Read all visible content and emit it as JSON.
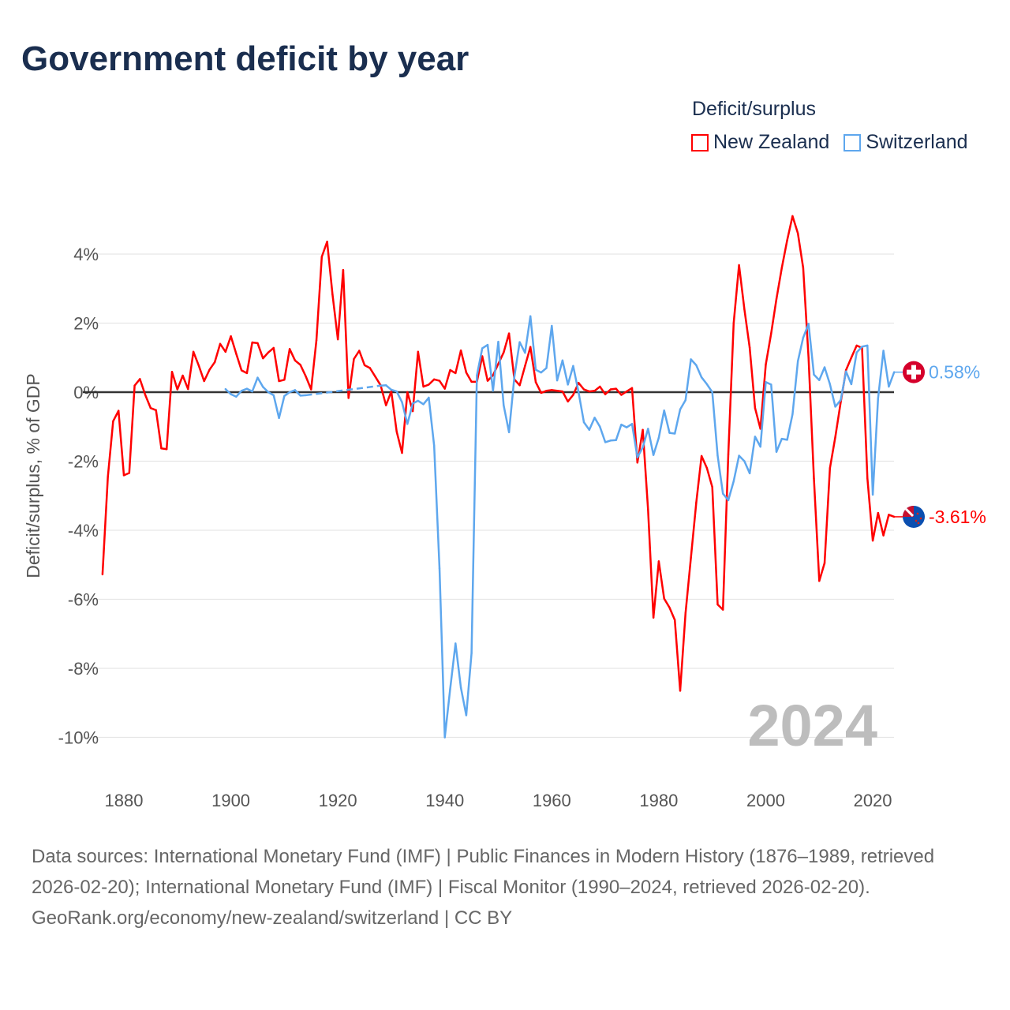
{
  "title": "Government deficit by year",
  "legend": {
    "title": "Deficit/surplus",
    "items": [
      {
        "label": "New Zealand",
        "color": "#ff0000"
      },
      {
        "label": "Switzerland",
        "color": "#5ea7ee"
      }
    ]
  },
  "chart_data": {
    "type": "line",
    "title": "Government deficit by year",
    "xlabel": "",
    "ylabel": "Deficit/surplus, % of GDP",
    "xlim": [
      1876,
      2024
    ],
    "ylim": [
      -11,
      5.2
    ],
    "x_ticks": [
      1880,
      1900,
      1920,
      1940,
      1960,
      1980,
      2000,
      2020
    ],
    "y_ticks": [
      -10,
      -8,
      -6,
      -4,
      -2,
      0,
      2,
      4
    ],
    "y_tick_labels": [
      "-10%",
      "-8%",
      "-6%",
      "-4%",
      "-2%",
      "0%",
      "2%",
      "4%"
    ],
    "grid": true,
    "legend_position": "top-right",
    "year_watermark": "2024",
    "series": [
      {
        "name": "New Zealand",
        "color": "#ff0000",
        "start_year": 1876,
        "end_label": "-3.61%",
        "flag": "new-zealand",
        "values": [
          -5.28,
          -2.45,
          -0.84,
          -0.54,
          -2.41,
          -2.34,
          0.19,
          0.38,
          -0.08,
          -0.46,
          -0.52,
          -1.63,
          -1.65,
          0.59,
          0.08,
          0.48,
          0.09,
          1.17,
          0.77,
          0.32,
          0.65,
          0.87,
          1.4,
          1.17,
          1.62,
          1.11,
          0.63,
          0.55,
          1.44,
          1.42,
          0.98,
          1.15,
          1.28,
          0.32,
          0.36,
          1.25,
          0.92,
          0.79,
          0.46,
          0.08,
          1.5,
          3.92,
          4.36,
          2.83,
          1.53,
          3.54,
          -0.17,
          0.96,
          1.2,
          0.78,
          0.7,
          0.45,
          0.2,
          -0.38,
          0.02,
          -1.14,
          -1.76,
          0.0,
          -0.55,
          1.17,
          0.16,
          0.22,
          0.37,
          0.33,
          0.1,
          0.64,
          0.55,
          1.21,
          0.57,
          0.3,
          0.3,
          1.04,
          0.33,
          0.49,
          0.82,
          1.15,
          1.7,
          0.37,
          0.2,
          0.76,
          1.31,
          0.29,
          -0.02,
          0.04,
          0.06,
          0.04,
          0.02,
          -0.27,
          -0.08,
          0.27,
          0.08,
          0.02,
          0.04,
          0.16,
          -0.06,
          0.08,
          0.1,
          -0.08,
          0.02,
          0.12,
          -2.04,
          -1.09,
          -3.4,
          -6.53,
          -4.9,
          -5.98,
          -6.24,
          -6.6,
          -8.65,
          -6.4,
          -4.8,
          -3.2,
          -1.85,
          -2.2,
          -2.75,
          -6.15,
          -6.3,
          -1.8,
          2.0,
          3.68,
          2.4,
          1.29,
          -0.46,
          -1.06,
          0.8,
          1.7,
          2.7,
          3.6,
          4.4,
          5.1,
          4.6,
          3.6,
          1.0,
          -2.5,
          -5.47,
          -4.95,
          -2.2,
          -1.3,
          -0.3,
          0.64,
          1.0,
          1.35,
          1.28,
          -2.5,
          -4.3,
          -3.5,
          -4.15,
          -3.55,
          -3.61
        ]
      },
      {
        "name": "Switzerland",
        "color": "#5ea7ee",
        "start_year": 1899,
        "end_label": "0.58%",
        "flag": "switzerland",
        "values": [
          0.09,
          -0.06,
          -0.13,
          0.04,
          0.1,
          0.02,
          0.42,
          0.15,
          0.0,
          -0.09,
          -0.75,
          -0.11,
          0.0,
          0.06,
          -0.1,
          -0.09,
          null,
          null,
          null,
          null,
          null,
          null,
          null,
          null,
          null,
          null,
          null,
          null,
          null,
          0.19,
          0.2,
          0.07,
          0.02,
          -0.29,
          -0.92,
          -0.33,
          -0.25,
          -0.35,
          -0.16,
          -1.55,
          -5.1,
          -10.0,
          -8.6,
          -7.28,
          -8.56,
          -9.36,
          -7.56,
          0.49,
          1.27,
          1.37,
          0.04,
          1.46,
          -0.38,
          -1.16,
          0.45,
          1.45,
          1.14,
          2.2,
          0.65,
          0.57,
          0.7,
          1.92,
          0.34,
          0.92,
          0.22,
          0.76,
          0.0,
          -0.87,
          -1.09,
          -0.74,
          -1.0,
          -1.45,
          -1.4,
          -1.39,
          -0.94,
          -1.02,
          -0.92,
          -1.89,
          -1.6,
          -1.06,
          -1.82,
          -1.32,
          -0.53,
          -1.18,
          -1.2,
          -0.5,
          -0.23,
          0.95,
          0.78,
          0.43,
          0.23,
          0.0,
          -1.84,
          -2.94,
          -3.13,
          -2.58,
          -1.84,
          -2.0,
          -2.35,
          -1.29,
          -1.58,
          0.29,
          0.22,
          -1.73,
          -1.35,
          -1.38,
          -0.64,
          0.9,
          1.58,
          1.98,
          0.51,
          0.35,
          0.72,
          0.23,
          -0.42,
          -0.23,
          0.6,
          0.23,
          1.15,
          1.32,
          1.35,
          -2.97,
          -0.18,
          1.2,
          0.16,
          0.58
        ]
      }
    ]
  },
  "footer": {
    "sources": "Data sources: International Monetary Fund (IMF) | Public Finances in Modern History (1876–1989, retrieved 2026-02-20); International Monetary Fund (IMF) | Fiscal Monitor (1990–2024, retrieved 2026-02-20).",
    "credit": "GeoRank.org/economy/new-zealand/switzerland | CC BY"
  }
}
